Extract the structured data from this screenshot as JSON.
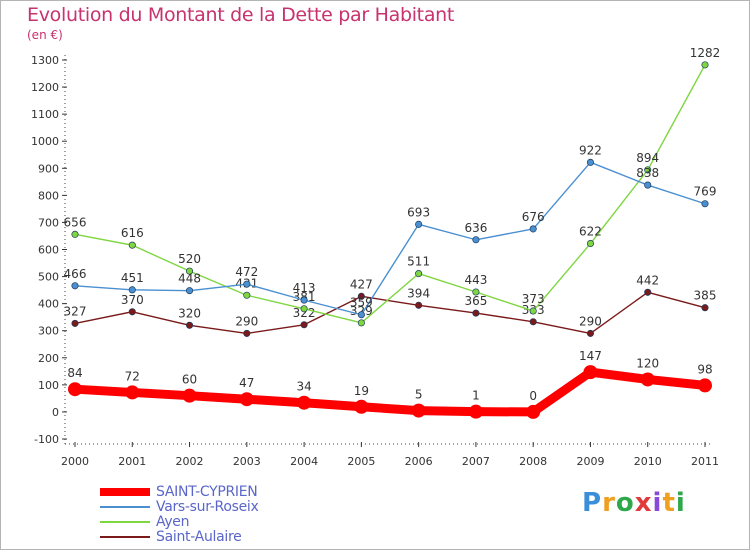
{
  "header": {
    "title": "Evolution du Montant de la Dette par Habitant",
    "unit": "(en €)"
  },
  "logo": {
    "text": "Proxiti",
    "letters": [
      "P",
      "r",
      "o",
      "x",
      "i",
      "t",
      "i"
    ],
    "colors": [
      "#3a8fd8",
      "#f0a020",
      "#2ea84a",
      "#e03a3a",
      "#8a4ad8",
      "#f0a020",
      "#2ea84a"
    ]
  },
  "chart_data": {
    "type": "line",
    "categories": [
      "2000",
      "2001",
      "2002",
      "2003",
      "2004",
      "2005",
      "2006",
      "2007",
      "2008",
      "2009",
      "2010",
      "2011"
    ],
    "ylim": [
      -100,
      1300
    ],
    "yticks": [
      -100,
      0,
      100,
      200,
      300,
      400,
      500,
      600,
      700,
      800,
      900,
      1000,
      1100,
      1200,
      1300
    ],
    "grid": false,
    "legend_position": "bottom-left",
    "series": [
      {
        "name": "SAINT-CYPRIEN",
        "color": "#ff0000",
        "values": [
          84,
          72,
          60,
          47,
          34,
          19,
          5,
          1,
          0,
          147,
          120,
          98
        ]
      },
      {
        "name": "Vars-sur-Roseix",
        "color": "#4a90d0",
        "values": [
          466,
          451,
          448,
          472,
          413,
          359,
          693,
          636,
          676,
          922,
          838,
          769
        ]
      },
      {
        "name": "Ayen",
        "color": "#7ed640",
        "values": [
          656,
          616,
          520,
          431,
          381,
          329,
          511,
          443,
          373,
          622,
          894,
          1282
        ]
      },
      {
        "name": "Saint-Aulaire",
        "color": "#7a1a1a",
        "values": [
          327,
          370,
          320,
          290,
          322,
          427,
          394,
          365,
          333,
          290,
          442,
          385
        ]
      }
    ]
  }
}
